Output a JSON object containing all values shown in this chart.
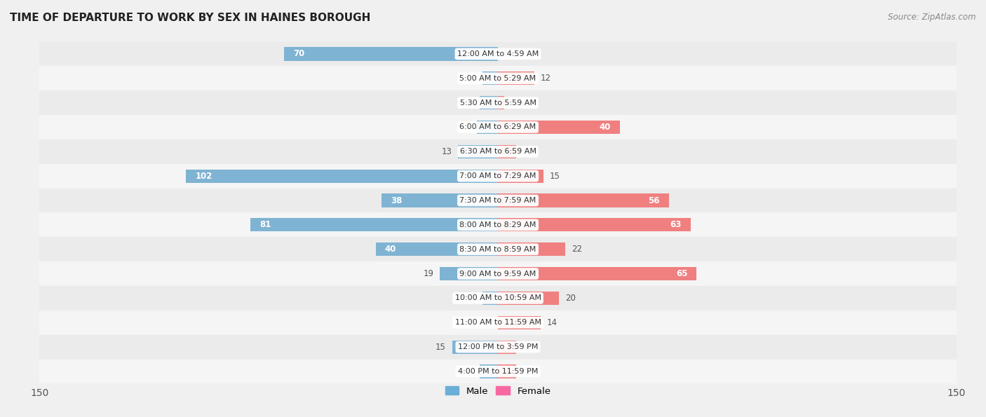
{
  "title": "TIME OF DEPARTURE TO WORK BY SEX IN HAINES BOROUGH",
  "source": "Source: ZipAtlas.com",
  "categories": [
    "12:00 AM to 4:59 AM",
    "5:00 AM to 5:29 AM",
    "5:30 AM to 5:59 AM",
    "6:00 AM to 6:29 AM",
    "6:30 AM to 6:59 AM",
    "7:00 AM to 7:29 AM",
    "7:30 AM to 7:59 AM",
    "8:00 AM to 8:29 AM",
    "8:30 AM to 8:59 AM",
    "9:00 AM to 9:59 AM",
    "10:00 AM to 10:59 AM",
    "11:00 AM to 11:59 AM",
    "12:00 PM to 3:59 PM",
    "4:00 PM to 11:59 PM"
  ],
  "male": [
    70,
    5,
    6,
    7,
    13,
    102,
    38,
    81,
    40,
    19,
    5,
    0,
    15,
    6
  ],
  "female": [
    0,
    12,
    2,
    40,
    6,
    15,
    56,
    63,
    22,
    65,
    20,
    14,
    6,
    6
  ],
  "male_color": "#7fb3d3",
  "female_color": "#f08080",
  "axis_max": 150,
  "bar_height": 0.55,
  "row_bg_colors": [
    "#ebebeb",
    "#f5f5f5"
  ],
  "legend_male_color": "#6baed6",
  "legend_female_color": "#f768a1",
  "bg_color": "#f0f0f0"
}
